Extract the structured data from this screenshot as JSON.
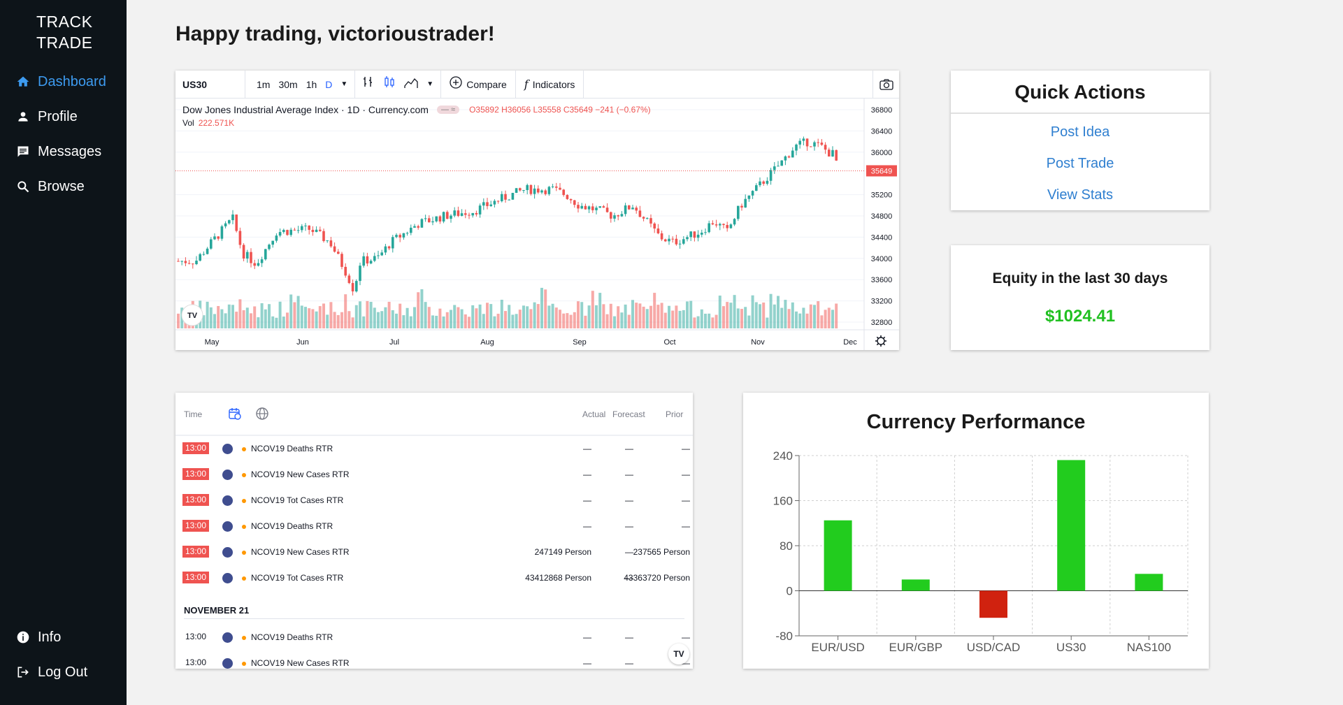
{
  "sidebar": {
    "brand_line1": "TRACK",
    "brand_line2": "TRADE",
    "items": [
      {
        "label": "Dashboard",
        "icon": "home-icon",
        "active": true
      },
      {
        "label": "Profile",
        "icon": "person-icon"
      },
      {
        "label": "Messages",
        "icon": "message-icon"
      },
      {
        "label": "Browse",
        "icon": "search-icon"
      }
    ],
    "bottom_items": [
      {
        "label": "Info",
        "icon": "info-icon"
      },
      {
        "label": "Log Out",
        "icon": "logout-icon"
      }
    ]
  },
  "main": {
    "greeting": "Happy trading, victorioustrader!"
  },
  "price_chart": {
    "symbol": "US30",
    "intervals": [
      "1m",
      "30m",
      "1h",
      "D"
    ],
    "selected_interval": "D",
    "compare_label": "Compare",
    "indicators_label": "Indicators",
    "legend_title": "Dow Jones Industrial Average Index · 1D · Currency.com",
    "ohlc": "O35892 H36056 L35558 C35649 −241 (−0.67%)",
    "vol_label": "Vol",
    "vol_value": "222.571K",
    "last_price": "35649",
    "y_ticks": [
      "36800",
      "36400",
      "36000",
      "35200",
      "34800",
      "34400",
      "34000",
      "33600",
      "33200",
      "32800"
    ],
    "x_ticks": [
      "May",
      "Jun",
      "Jul",
      "Aug",
      "Sep",
      "Oct",
      "Nov",
      "Dec"
    ],
    "colors": {
      "up": "#26a69a",
      "down": "#ef5350"
    }
  },
  "quick_actions": {
    "title": "Quick Actions",
    "links": [
      "Post Idea",
      "Post Trade",
      "View Stats"
    ]
  },
  "equity": {
    "title": "Equity in the last 30 days",
    "value": "$1024.41"
  },
  "calendar": {
    "headers": {
      "time": "Time",
      "actual": "Actual",
      "forecast": "Forecast",
      "prior": "Prior"
    },
    "rows": [
      {
        "time": "13:00",
        "event": "NCOV19 Deaths RTR",
        "actual": "—",
        "forecast": "—",
        "prior": "—"
      },
      {
        "time": "13:00",
        "event": "NCOV19 New Cases RTR",
        "actual": "—",
        "forecast": "—",
        "prior": "—"
      },
      {
        "time": "13:00",
        "event": "NCOV19 Tot Cases RTR",
        "actual": "—",
        "forecast": "—",
        "prior": "—"
      },
      {
        "time": "13:00",
        "event": "NCOV19 Deaths RTR",
        "actual": "—",
        "forecast": "—",
        "prior": "—"
      },
      {
        "time": "13:00",
        "event": "NCOV19 New Cases RTR",
        "actual": "247149 Person",
        "forecast": "—",
        "prior": "237565 Person"
      },
      {
        "time": "13:00",
        "event": "NCOV19 Tot Cases RTR",
        "actual": "43412868 Person",
        "forecast": "—",
        "prior": "43363720 Person"
      }
    ],
    "day_label": "NOVEMBER 21",
    "rows2": [
      {
        "time": "13:00",
        "event": "NCOV19 Deaths RTR",
        "actual": "—",
        "forecast": "—",
        "prior": "—"
      },
      {
        "time": "13:00",
        "event": "NCOV19 New Cases RTR",
        "actual": "—",
        "forecast": "—",
        "prior": "—"
      }
    ]
  },
  "currency_performance": {
    "title": "Currency Performance"
  },
  "chart_data": {
    "type": "bar",
    "title": "Currency Performance",
    "categories": [
      "EUR/USD",
      "EUR/GBP",
      "USD/CAD",
      "US30",
      "NAS100"
    ],
    "values": [
      125,
      20,
      -48,
      232,
      30
    ],
    "ylim": [
      -80,
      240
    ],
    "yticks": [
      240,
      160,
      80,
      0,
      -80
    ],
    "grid": true,
    "colors": {
      "positive": "#22cc1e",
      "negative": "#d0220f"
    }
  }
}
